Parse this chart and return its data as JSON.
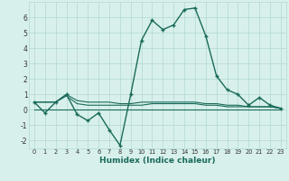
{
  "xlabel": "Humidex (Indice chaleur)",
  "x": [
    0,
    1,
    2,
    3,
    4,
    5,
    6,
    7,
    8,
    9,
    10,
    11,
    12,
    13,
    14,
    15,
    16,
    17,
    18,
    19,
    20,
    21,
    22,
    23
  ],
  "y_main": [
    0.5,
    -0.2,
    0.5,
    1.0,
    -0.3,
    -0.7,
    -0.2,
    -1.3,
    -2.3,
    1.0,
    4.5,
    5.8,
    5.2,
    5.5,
    6.5,
    6.6,
    4.8,
    2.2,
    1.3,
    1.0,
    0.3,
    0.8,
    0.3,
    0.1
  ],
  "y_flat1": [
    0.0,
    0.0,
    0.0,
    0.0,
    0.0,
    0.0,
    0.0,
    0.0,
    0.0,
    0.0,
    0.0,
    0.0,
    0.0,
    0.0,
    0.0,
    0.0,
    0.0,
    0.0,
    0.0,
    0.0,
    0.0,
    0.0,
    0.0,
    0.0
  ],
  "y_flat2": [
    0.5,
    0.5,
    0.5,
    0.9,
    0.4,
    0.3,
    0.3,
    0.3,
    0.3,
    0.3,
    0.3,
    0.4,
    0.4,
    0.4,
    0.4,
    0.4,
    0.3,
    0.3,
    0.2,
    0.2,
    0.2,
    0.2,
    0.2,
    0.1
  ],
  "y_flat3": [
    0.5,
    0.5,
    0.5,
    1.0,
    0.6,
    0.5,
    0.5,
    0.5,
    0.4,
    0.4,
    0.5,
    0.5,
    0.5,
    0.5,
    0.5,
    0.5,
    0.4,
    0.4,
    0.3,
    0.3,
    0.2,
    0.2,
    0.2,
    0.1
  ],
  "line_color": "#1a6b5a",
  "bg_color": "#d8f0ec",
  "grid_color": "#b0d8d0",
  "ylim": [
    -2.5,
    7.0
  ],
  "xlim": [
    -0.5,
    23.5
  ],
  "yticks": [
    -2,
    -1,
    0,
    1,
    2,
    3,
    4,
    5,
    6
  ],
  "xticks": [
    0,
    1,
    2,
    3,
    4,
    5,
    6,
    7,
    8,
    9,
    10,
    11,
    12,
    13,
    14,
    15,
    16,
    17,
    18,
    19,
    20,
    21,
    22,
    23
  ],
  "xtick_labels": [
    "0",
    "1",
    "2",
    "3",
    "4",
    "5",
    "6",
    "7",
    "8",
    "9",
    "10",
    "11",
    "12",
    "13",
    "14",
    "15",
    "16",
    "17",
    "18",
    "19",
    "20",
    "21",
    "22",
    "23"
  ]
}
